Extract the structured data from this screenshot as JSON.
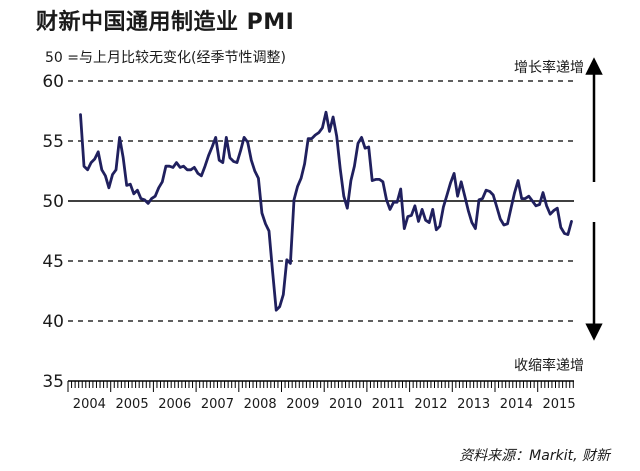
{
  "title": "财新中国通用制造业 PMI",
  "subtitle": "50 =与上月比较无变化(经季节性调整)",
  "annotations": {
    "up": "增长率递增",
    "down": "收缩率递增",
    "source": "资料来源：Markit, 财新"
  },
  "chart_data": {
    "type": "line",
    "title": "财新中国通用制造业 PMI",
    "xlabel": "",
    "ylabel": "",
    "ylim": [
      35,
      60
    ],
    "yticks": [
      35,
      40,
      45,
      50,
      55,
      60
    ],
    "x_tick_labels": [
      "2004",
      "2005",
      "2006",
      "2007",
      "2008",
      "2009",
      "2010",
      "2011",
      "2012",
      "2013",
      "2014",
      "2015"
    ],
    "reference_line": 50,
    "grid": "dashed horizontal at 45, 55, 60; solid at 50",
    "series": [
      {
        "color": "#20205e",
        "points": [
          [
            "2004-04",
            57.2
          ],
          [
            "2004-05",
            52.9
          ],
          [
            "2004-06",
            52.6
          ],
          [
            "2004-07",
            53.2
          ],
          [
            "2004-08",
            53.5
          ],
          [
            "2004-09",
            54.1
          ],
          [
            "2004-10",
            52.6
          ],
          [
            "2004-11",
            52.1
          ],
          [
            "2004-12",
            51.1
          ],
          [
            "2005-01",
            52.2
          ],
          [
            "2005-02",
            52.6
          ],
          [
            "2005-03",
            55.3
          ],
          [
            "2005-04",
            53.6
          ],
          [
            "2005-05",
            51.3
          ],
          [
            "2005-06",
            51.4
          ],
          [
            "2005-07",
            50.6
          ],
          [
            "2005-08",
            50.9
          ],
          [
            "2005-09",
            50.2
          ],
          [
            "2005-10",
            50.1
          ],
          [
            "2005-11",
            49.8
          ],
          [
            "2005-12",
            50.2
          ],
          [
            "2006-01",
            50.4
          ],
          [
            "2006-02",
            51.1
          ],
          [
            "2006-03",
            51.6
          ],
          [
            "2006-04",
            52.9
          ],
          [
            "2006-05",
            52.9
          ],
          [
            "2006-06",
            52.8
          ],
          [
            "2006-07",
            53.2
          ],
          [
            "2006-08",
            52.8
          ],
          [
            "2006-09",
            52.9
          ],
          [
            "2006-10",
            52.6
          ],
          [
            "2006-11",
            52.6
          ],
          [
            "2006-12",
            52.8
          ],
          [
            "2007-01",
            52.3
          ],
          [
            "2007-02",
            52.1
          ],
          [
            "2007-03",
            52.9
          ],
          [
            "2007-04",
            53.8
          ],
          [
            "2007-05",
            54.5
          ],
          [
            "2007-06",
            55.3
          ],
          [
            "2007-07",
            53.4
          ],
          [
            "2007-08",
            53.2
          ],
          [
            "2007-09",
            55.3
          ],
          [
            "2007-10",
            53.6
          ],
          [
            "2007-11",
            53.3
          ],
          [
            "2007-12",
            53.2
          ],
          [
            "2008-01",
            54.2
          ],
          [
            "2008-02",
            55.3
          ],
          [
            "2008-03",
            54.9
          ],
          [
            "2008-04",
            53.4
          ],
          [
            "2008-05",
            52.5
          ],
          [
            "2008-06",
            51.9
          ],
          [
            "2008-07",
            49.0
          ],
          [
            "2008-08",
            48.1
          ],
          [
            "2008-09",
            47.5
          ],
          [
            "2008-10",
            44.1
          ],
          [
            "2008-11",
            40.9
          ],
          [
            "2008-12",
            41.2
          ],
          [
            "2009-01",
            42.2
          ],
          [
            "2009-02",
            45.1
          ],
          [
            "2009-03",
            44.8
          ],
          [
            "2009-04",
            50.1
          ],
          [
            "2009-05",
            51.2
          ],
          [
            "2009-06",
            51.9
          ],
          [
            "2009-07",
            53.1
          ],
          [
            "2009-08",
            55.2
          ],
          [
            "2009-09",
            55.2
          ],
          [
            "2009-10",
            55.5
          ],
          [
            "2009-11",
            55.7
          ],
          [
            "2009-12",
            56.1
          ],
          [
            "2010-01",
            57.4
          ],
          [
            "2010-02",
            55.8
          ],
          [
            "2010-03",
            57.0
          ],
          [
            "2010-04",
            55.4
          ],
          [
            "2010-05",
            52.7
          ],
          [
            "2010-06",
            50.4
          ],
          [
            "2010-07",
            49.4
          ],
          [
            "2010-08",
            51.7
          ],
          [
            "2010-09",
            52.9
          ],
          [
            "2010-10",
            54.8
          ],
          [
            "2010-11",
            55.3
          ],
          [
            "2010-12",
            54.4
          ],
          [
            "2011-01",
            54.5
          ],
          [
            "2011-02",
            51.7
          ],
          [
            "2011-03",
            51.8
          ],
          [
            "2011-04",
            51.8
          ],
          [
            "2011-05",
            51.6
          ],
          [
            "2011-06",
            50.1
          ],
          [
            "2011-07",
            49.3
          ],
          [
            "2011-08",
            49.9
          ],
          [
            "2011-09",
            49.9
          ],
          [
            "2011-10",
            51.0
          ],
          [
            "2011-11",
            47.7
          ],
          [
            "2011-12",
            48.7
          ],
          [
            "2012-01",
            48.8
          ],
          [
            "2012-02",
            49.6
          ],
          [
            "2012-03",
            48.3
          ],
          [
            "2012-04",
            49.3
          ],
          [
            "2012-05",
            48.4
          ],
          [
            "2012-06",
            48.2
          ],
          [
            "2012-07",
            49.3
          ],
          [
            "2012-08",
            47.6
          ],
          [
            "2012-09",
            47.9
          ],
          [
            "2012-10",
            49.5
          ],
          [
            "2012-11",
            50.5
          ],
          [
            "2012-12",
            51.5
          ],
          [
            "2013-01",
            52.3
          ],
          [
            "2013-02",
            50.4
          ],
          [
            "2013-03",
            51.6
          ],
          [
            "2013-04",
            50.4
          ],
          [
            "2013-05",
            49.2
          ],
          [
            "2013-06",
            48.2
          ],
          [
            "2013-07",
            47.7
          ],
          [
            "2013-08",
            50.1
          ],
          [
            "2013-09",
            50.2
          ],
          [
            "2013-10",
            50.9
          ],
          [
            "2013-11",
            50.8
          ],
          [
            "2013-12",
            50.5
          ],
          [
            "2014-01",
            49.5
          ],
          [
            "2014-02",
            48.5
          ],
          [
            "2014-03",
            48.0
          ],
          [
            "2014-04",
            48.1
          ],
          [
            "2014-05",
            49.4
          ],
          [
            "2014-06",
            50.7
          ],
          [
            "2014-07",
            51.7
          ],
          [
            "2014-08",
            50.2
          ],
          [
            "2014-09",
            50.2
          ],
          [
            "2014-10",
            50.4
          ],
          [
            "2014-11",
            50.0
          ],
          [
            "2014-12",
            49.6
          ],
          [
            "2015-01",
            49.7
          ],
          [
            "2015-02",
            50.7
          ],
          [
            "2015-03",
            49.6
          ],
          [
            "2015-04",
            48.9
          ],
          [
            "2015-05",
            49.2
          ],
          [
            "2015-06",
            49.4
          ],
          [
            "2015-07",
            47.8
          ],
          [
            "2015-08",
            47.3
          ],
          [
            "2015-09",
            47.2
          ],
          [
            "2015-10",
            48.3
          ]
        ]
      }
    ]
  }
}
